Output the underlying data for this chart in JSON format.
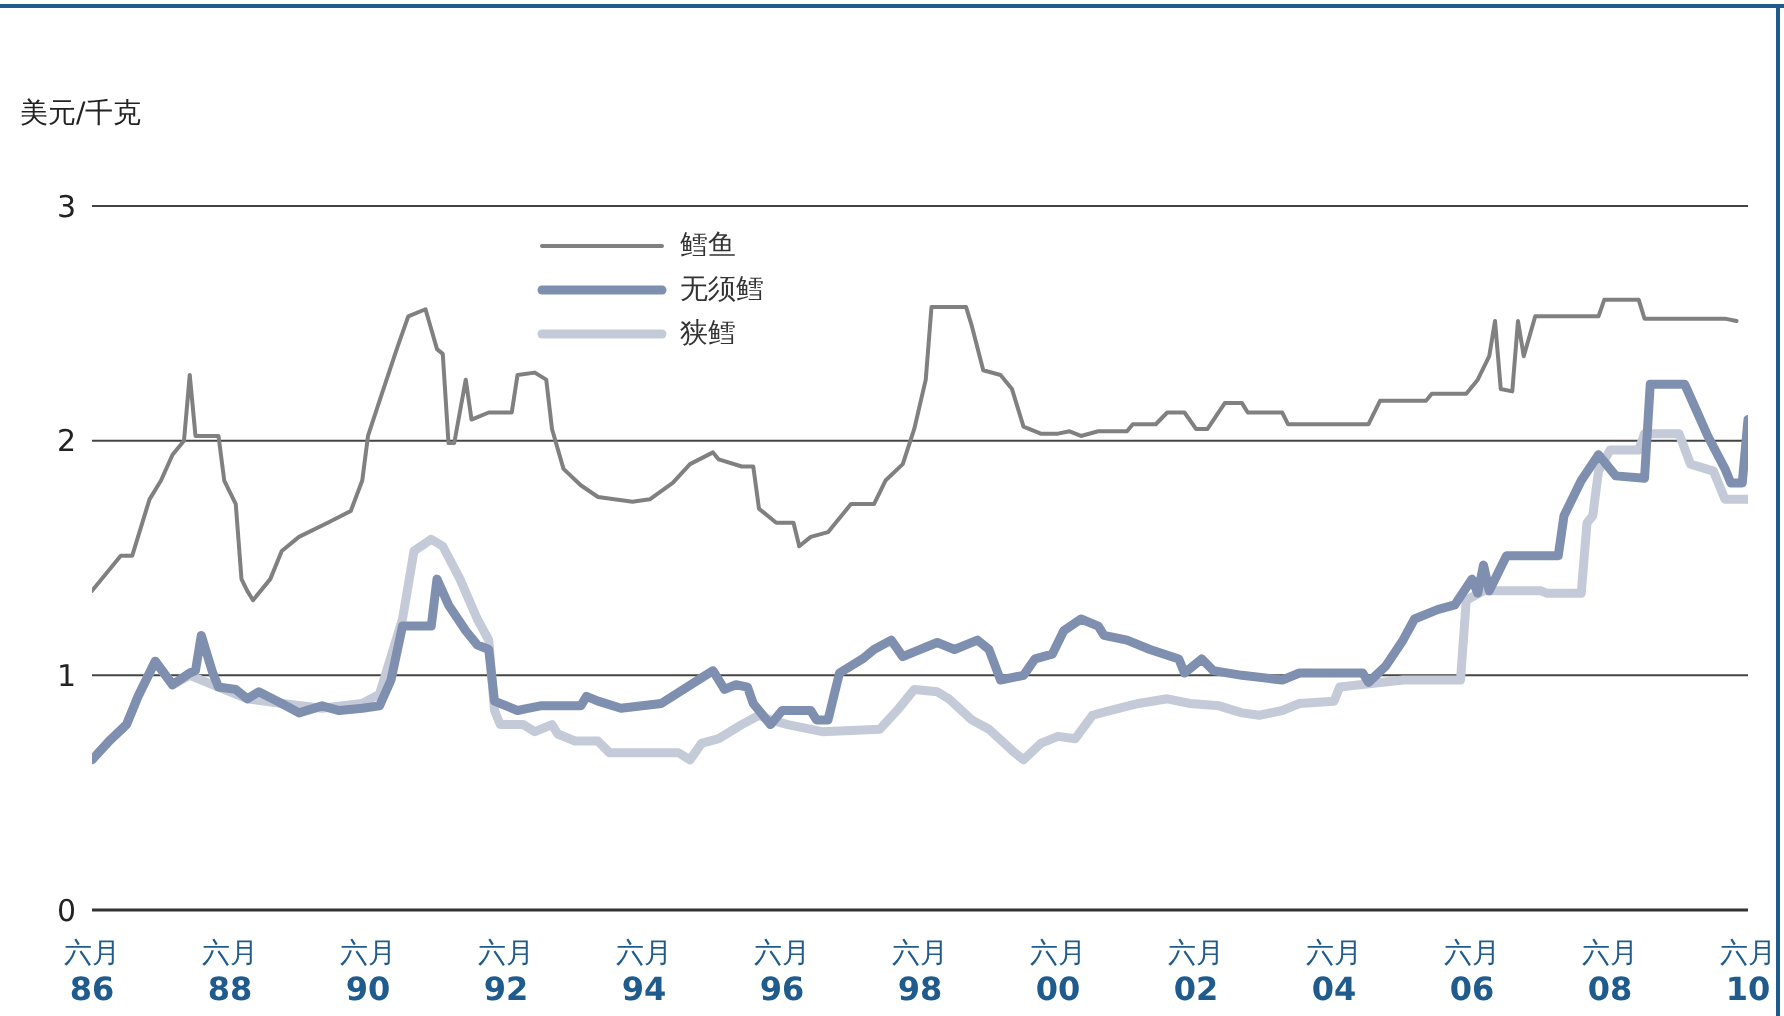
{
  "chart_data": {
    "type": "line",
    "ylabel": "美元/千克",
    "legend": "top left",
    "grid": "y",
    "line_style": "solid",
    "marker": "none",
    "xlim": [
      "1986-06",
      "2010-06"
    ],
    "ylim": [
      0,
      3
    ],
    "yticks": [
      0,
      1,
      2,
      3
    ],
    "xticks": [
      {
        "value": "1986-06",
        "label": "六月\n86"
      },
      {
        "value": "1988-06",
        "label": "六月\n88"
      },
      {
        "value": "1990-06",
        "label": "六月\n90"
      },
      {
        "value": "1992-06",
        "label": "六月\n92"
      },
      {
        "value": "1994-06",
        "label": "六月\n94"
      },
      {
        "value": "1996-06",
        "label": "六月\n96"
      },
      {
        "value": "1998-06",
        "label": "六月\n98"
      },
      {
        "value": "2000-06",
        "label": "六月\n00"
      },
      {
        "value": "2002-06",
        "label": "六月\n02"
      },
      {
        "value": "2004-06",
        "label": "六月\n04"
      },
      {
        "value": "2006-06",
        "label": "六月\n06"
      },
      {
        "value": "2008-06",
        "label": "六月\n08"
      },
      {
        "value": "2010-06",
        "label": "六月\n10"
      }
    ],
    "series": [
      {
        "name": "鳕鱼",
        "color": "#808080",
        "x": [
          "1986-06",
          "1986-11",
          "1987-01",
          "1987-02",
          "1987-04",
          "1987-06",
          "1987-08",
          "1987-10",
          "1987-11",
          "1987-12",
          "1988-04",
          "1988-05",
          "1988-07",
          "1988-08",
          "1988-09",
          "1988-10",
          "1989-01",
          "1989-03",
          "1989-06",
          "1989-11",
          "1990-03",
          "1990-05",
          "1990-06",
          "1990-08",
          "1990-11",
          "1991-01",
          "1991-04",
          "1991-06",
          "1991-07",
          "1991-08",
          "1991-09",
          "1991-11",
          "1991-12",
          "1992-03",
          "1992-07",
          "1992-08",
          "1992-11",
          "1993-01",
          "1993-02",
          "1993-04",
          "1993-07",
          "1993-10",
          "1994-04",
          "1994-07",
          "1994-11",
          "1995-02",
          "1995-06",
          "1995-07",
          "1995-11",
          "1996-01",
          "1996-02",
          "1996-05",
          "1996-08",
          "1996-09",
          "1996-11",
          "1997-02",
          "1997-06",
          "1997-10",
          "1997-12",
          "1998-03",
          "1998-05",
          "1998-07",
          "1998-08",
          "1999-02",
          "1999-03",
          "1999-05",
          "1999-08",
          "1999-10",
          "1999-12",
          "2000-03",
          "2000-06",
          "2000-08",
          "2000-10",
          "2001-01",
          "2001-06",
          "2001-07",
          "2001-11",
          "2002-01",
          "2002-04",
          "2002-06",
          "2002-08",
          "2002-11",
          "2003-02",
          "2003-03",
          "2003-09",
          "2003-10",
          "2004-12",
          "2005-02",
          "2005-10",
          "2005-11",
          "2006-05",
          "2006-07",
          "2006-09",
          "2006-10",
          "2006-11",
          "2007-01",
          "2007-02",
          "2007-03",
          "2007-05",
          "2008-04",
          "2008-05",
          "2008-11",
          "2008-12",
          "2010-02",
          "2010-04"
        ],
        "values": [
          1.36,
          1.51,
          1.51,
          1.59,
          1.75,
          1.83,
          1.94,
          2.0,
          2.28,
          2.02,
          2.02,
          1.83,
          1.73,
          1.41,
          1.36,
          1.32,
          1.41,
          1.53,
          1.59,
          1.65,
          1.7,
          1.83,
          2.02,
          2.17,
          2.39,
          2.53,
          2.56,
          2.39,
          2.37,
          1.99,
          1.99,
          2.26,
          2.09,
          2.12,
          2.12,
          2.28,
          2.29,
          2.26,
          2.05,
          1.88,
          1.81,
          1.76,
          1.74,
          1.75,
          1.82,
          1.9,
          1.95,
          1.92,
          1.89,
          1.89,
          1.71,
          1.65,
          1.65,
          1.55,
          1.59,
          1.61,
          1.73,
          1.73,
          1.83,
          1.9,
          2.05,
          2.26,
          2.57,
          2.57,
          2.49,
          2.3,
          2.28,
          2.22,
          2.06,
          2.03,
          2.03,
          2.04,
          2.02,
          2.04,
          2.04,
          2.07,
          2.07,
          2.12,
          2.12,
          2.05,
          2.05,
          2.16,
          2.16,
          2.12,
          2.12,
          2.07,
          2.07,
          2.17,
          2.17,
          2.2,
          2.2,
          2.26,
          2.36,
          2.51,
          2.22,
          2.21,
          2.51,
          2.36,
          2.53,
          2.53,
          2.6,
          2.6,
          2.52,
          2.52,
          2.51
        ]
      },
      {
        "name": "无须鳕",
        "color": "#7f8fb0",
        "x": [
          "1986-06",
          "1986-09",
          "1986-12",
          "1987-02",
          "1987-05",
          "1987-08",
          "1987-11",
          "1987-12",
          "1988-01",
          "1988-03",
          "1988-04",
          "1988-07",
          "1988-09",
          "1988-11",
          "1989-03",
          "1989-06",
          "1989-10",
          "1990-01",
          "1990-05",
          "1990-08",
          "1990-10",
          "1990-12",
          "1991-03",
          "1991-05",
          "1991-06",
          "1991-08",
          "1991-11",
          "1992-01",
          "1992-03",
          "1992-04",
          "1992-08",
          "1992-10",
          "1992-12",
          "1993-07",
          "1993-08",
          "1993-10",
          "1994-02",
          "1994-09",
          "1995-06",
          "1995-08",
          "1995-10",
          "1995-12",
          "1996-01",
          "1996-04",
          "1996-06",
          "1996-11",
          "1996-12",
          "1997-02",
          "1997-04",
          "1997-08",
          "1997-10",
          "1998-01",
          "1998-03",
          "1998-05",
          "1998-09",
          "1998-12",
          "1999-04",
          "1999-06",
          "1999-08",
          "1999-12",
          "2000-02",
          "2000-05",
          "2000-07",
          "2000-10",
          "2001-01",
          "2001-02",
          "2001-06",
          "2001-10",
          "2002-03",
          "2002-04",
          "2002-07",
          "2002-09",
          "2003-02",
          "2003-09",
          "2003-12",
          "2004-11",
          "2004-12",
          "2005-03",
          "2005-06",
          "2005-08",
          "2005-12",
          "2006-03",
          "2006-06",
          "2006-07",
          "2006-08",
          "2006-09",
          "2006-12",
          "2007-09",
          "2007-10",
          "2008-01",
          "2008-04",
          "2008-07",
          "2008-12",
          "2009-01",
          "2009-07",
          "2009-09",
          "2009-11",
          "2010-02",
          "2010-03",
          "2010-05",
          "2010-06"
        ],
        "values": [
          0.64,
          0.72,
          0.79,
          0.91,
          1.06,
          0.96,
          1.01,
          1.02,
          1.17,
          1.01,
          0.95,
          0.94,
          0.9,
          0.93,
          0.88,
          0.84,
          0.87,
          0.85,
          0.86,
          0.87,
          0.98,
          1.21,
          1.21,
          1.21,
          1.41,
          1.3,
          1.19,
          1.13,
          1.11,
          0.89,
          0.85,
          0.86,
          0.87,
          0.87,
          0.91,
          0.89,
          0.86,
          0.88,
          1.02,
          0.94,
          0.96,
          0.95,
          0.88,
          0.79,
          0.85,
          0.85,
          0.81,
          0.81,
          1.01,
          1.07,
          1.11,
          1.15,
          1.08,
          1.1,
          1.14,
          1.11,
          1.15,
          1.11,
          0.98,
          1.0,
          1.07,
          1.09,
          1.19,
          1.24,
          1.21,
          1.17,
          1.15,
          1.11,
          1.07,
          1.01,
          1.07,
          1.02,
          1.0,
          0.98,
          1.01,
          1.01,
          0.97,
          1.04,
          1.15,
          1.24,
          1.28,
          1.3,
          1.41,
          1.35,
          1.47,
          1.36,
          1.51,
          1.51,
          1.68,
          1.83,
          1.94,
          1.85,
          1.84,
          2.24,
          2.24,
          2.13,
          2.02,
          1.88,
          1.82,
          1.82,
          2.09
        ]
      },
      {
        "name": "狭鳕",
        "color": "#c5cad8",
        "x": [
          "1986-06",
          "1986-09",
          "1986-12",
          "1987-02",
          "1987-05",
          "1987-08",
          "1987-11",
          "1988-04",
          "1988-09",
          "1989-03",
          "1989-10",
          "1990-05",
          "1990-08",
          "1990-12",
          "1991-02",
          "1991-05",
          "1991-07",
          "1991-10",
          "1992-01",
          "1992-03",
          "1992-04",
          "1992-05",
          "1992-09",
          "1992-11",
          "1993-02",
          "1993-03",
          "1993-06",
          "1993-10",
          "1993-12",
          "1994-12",
          "1995-02",
          "1995-04",
          "1995-07",
          "1995-11",
          "1996-02",
          "1996-04",
          "1996-07",
          "1997-01",
          "1997-11",
          "1998-02",
          "1998-05",
          "1998-09",
          "1998-11",
          "1999-03",
          "1999-06",
          "1999-10",
          "1999-12",
          "2000-03",
          "2000-06",
          "2000-09",
          "2000-12",
          "2001-03",
          "2001-08",
          "2002-01",
          "2002-05",
          "2002-10",
          "2003-02",
          "2003-05",
          "2003-09",
          "2003-12",
          "2004-06",
          "2004-07",
          "2005-06",
          "2006-04",
          "2006-05",
          "2006-08",
          "2007-06",
          "2007-07",
          "2008-01",
          "2008-02",
          "2008-03",
          "2008-04",
          "2008-06",
          "2008-11",
          "2008-12",
          "2009-06",
          "2009-08",
          "2009-12",
          "2010-02",
          "2010-06"
        ],
        "values": [
          0.64,
          0.72,
          0.79,
          0.91,
          1.06,
          0.96,
          1.0,
          0.95,
          0.9,
          0.88,
          0.86,
          0.88,
          0.92,
          1.24,
          1.53,
          1.58,
          1.55,
          1.41,
          1.24,
          1.15,
          0.85,
          0.79,
          0.79,
          0.76,
          0.79,
          0.75,
          0.72,
          0.72,
          0.67,
          0.67,
          0.64,
          0.71,
          0.73,
          0.79,
          0.83,
          0.81,
          0.79,
          0.76,
          0.77,
          0.85,
          0.94,
          0.93,
          0.9,
          0.81,
          0.77,
          0.68,
          0.64,
          0.71,
          0.74,
          0.73,
          0.83,
          0.85,
          0.88,
          0.9,
          0.88,
          0.87,
          0.84,
          0.83,
          0.85,
          0.88,
          0.89,
          0.95,
          0.98,
          0.98,
          1.32,
          1.36,
          1.36,
          1.35,
          1.35,
          1.65,
          1.68,
          1.87,
          1.96,
          1.96,
          2.03,
          2.03,
          1.9,
          1.87,
          1.75,
          1.75
        ]
      }
    ]
  }
}
